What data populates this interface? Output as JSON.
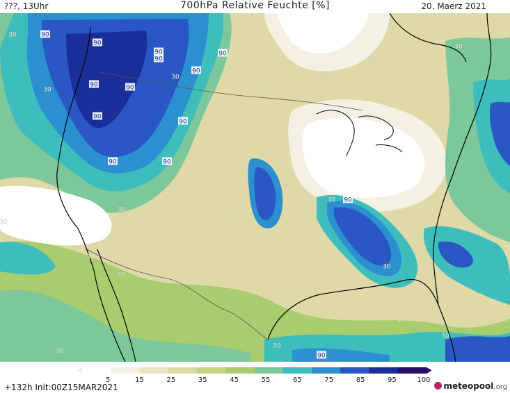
{
  "header": {
    "left": "???, 13Uhr",
    "title": "700hPa Relative Feuchte [%]",
    "date": "20. Maerz 2021"
  },
  "scale": {
    "ticks": [
      "5",
      "15",
      "25",
      "35",
      "45",
      "55",
      "65",
      "75",
      "85",
      "95",
      "100"
    ],
    "colors": [
      "#ffffff",
      "#f4f1e4",
      "#ebe5c6",
      "#dcd7a3",
      "#c6d282",
      "#a9cc6e",
      "#7cc89a",
      "#3ebdbd",
      "#2b8fd0",
      "#2a57c4",
      "#1a2f9a",
      "#2a0d6e"
    ]
  },
  "footer": {
    "init": "+132h Init:00Z15MAR2021",
    "logo_brand": "meteopool",
    "logo_tld": ".org"
  },
  "labels": [
    {
      "text": "90"
    },
    {
      "text": "90"
    },
    {
      "text": "90"
    },
    {
      "text": "90"
    },
    {
      "text": "90"
    },
    {
      "text": "90"
    },
    {
      "text": "90"
    },
    {
      "text": "90"
    },
    {
      "text": "90"
    },
    {
      "text": "90"
    },
    {
      "text": "90"
    },
    {
      "text": "90"
    },
    {
      "text": "90"
    },
    {
      "text": "90"
    },
    {
      "text": "30"
    },
    {
      "text": "30"
    },
    {
      "text": "30"
    },
    {
      "text": "30"
    },
    {
      "text": "30"
    },
    {
      "text": "30"
    },
    {
      "text": "30"
    },
    {
      "text": "30"
    },
    {
      "text": "30"
    },
    {
      "text": "30"
    },
    {
      "text": "30"
    },
    {
      "text": "30"
    },
    {
      "text": "30"
    },
    {
      "text": "30"
    },
    {
      "text": "30"
    },
    {
      "text": "30"
    },
    {
      "text": "30"
    },
    {
      "text": "30"
    },
    {
      "text": "30"
    },
    {
      "text": "30"
    },
    {
      "text": "30"
    },
    {
      "text": "30"
    },
    {
      "text": "30"
    },
    {
      "text": "30"
    }
  ]
}
